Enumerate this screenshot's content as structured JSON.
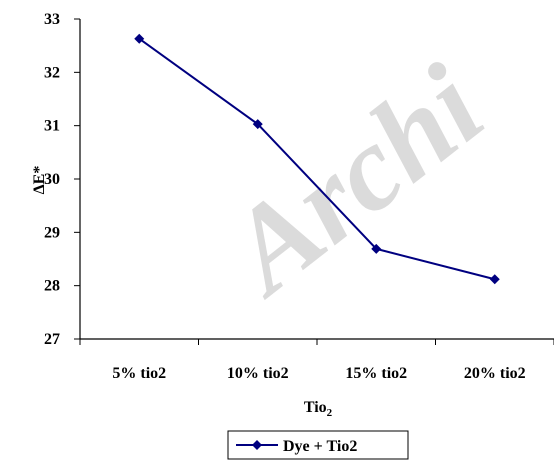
{
  "watermark": "Archi",
  "chart_data": {
    "type": "line",
    "title": "",
    "xlabel": "Tio",
    "xlabel_sub": "2",
    "ylabel": "ΔE*",
    "categories": [
      "5% tio2",
      "10% tio2",
      "15% tio2",
      "20% tio2"
    ],
    "ylim": [
      27,
      33
    ],
    "yticks": [
      27,
      28,
      29,
      30,
      31,
      32,
      33
    ],
    "grid": false,
    "legend_position": "bottom",
    "series": [
      {
        "name": "Dye + Tio2",
        "values": [
          32.63,
          31.03,
          28.69,
          28.12
        ],
        "color": "#000080",
        "marker": "diamond"
      }
    ]
  }
}
